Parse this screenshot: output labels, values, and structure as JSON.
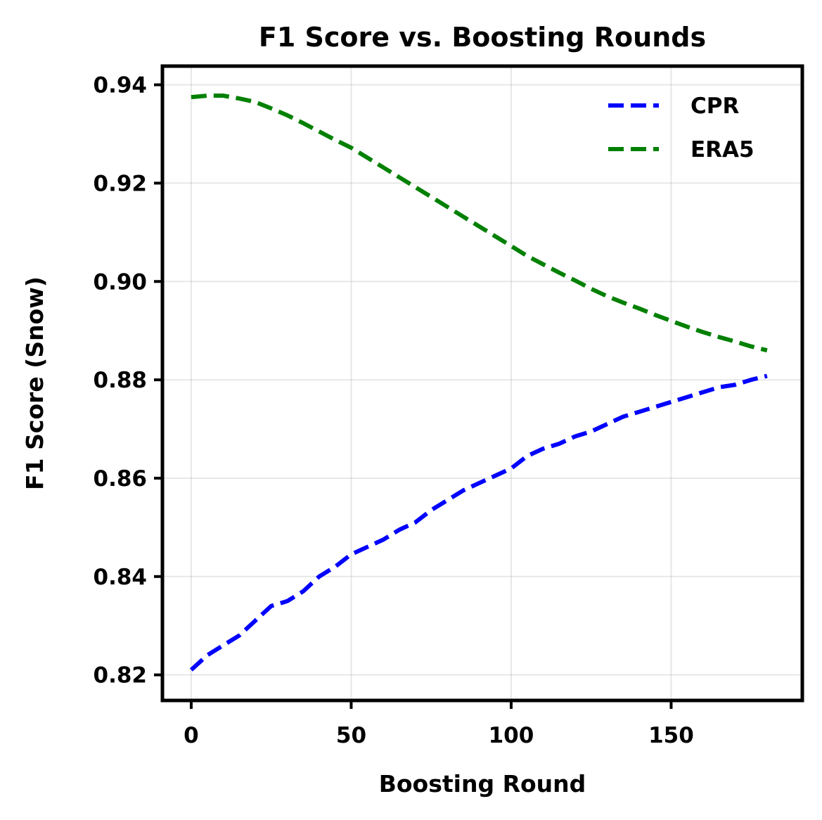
{
  "chart_data": {
    "type": "line",
    "title": "F1 Score vs. Boosting Rounds",
    "xlabel": "Boosting Round",
    "ylabel": "F1 Score (Snow)",
    "xlim": [
      -9,
      191
    ],
    "ylim": [
      0.8148,
      0.9438
    ],
    "xticks": [
      0,
      50,
      100,
      150
    ],
    "xtick_labels": [
      "0",
      "50",
      "100",
      "150"
    ],
    "yticks": [
      0.82,
      0.84,
      0.86,
      0.88,
      0.9,
      0.92,
      0.94
    ],
    "ytick_labels": [
      "0.82",
      "0.84",
      "0.86",
      "0.88",
      "0.90",
      "0.92",
      "0.94"
    ],
    "grid": true,
    "legend_position": "upper-right",
    "x": [
      0,
      5,
      10,
      15,
      20,
      25,
      30,
      35,
      40,
      45,
      50,
      55,
      60,
      65,
      70,
      75,
      80,
      85,
      90,
      95,
      100,
      105,
      110,
      115,
      120,
      125,
      130,
      135,
      140,
      145,
      150,
      155,
      160,
      165,
      170,
      175,
      180
    ],
    "series": [
      {
        "name": "CPR",
        "color": "#0000ff",
        "style": "dashed",
        "values": [
          0.821,
          0.824,
          0.826,
          0.828,
          0.831,
          0.834,
          0.835,
          0.837,
          0.84,
          0.842,
          0.8445,
          0.846,
          0.8475,
          0.8495,
          0.851,
          0.8535,
          0.8555,
          0.8575,
          0.859,
          0.8605,
          0.862,
          0.8645,
          0.866,
          0.867,
          0.8685,
          0.8695,
          0.871,
          0.8725,
          0.8735,
          0.8745,
          0.8755,
          0.8765,
          0.8775,
          0.8785,
          0.879,
          0.88,
          0.8808
        ]
      },
      {
        "name": "ERA5",
        "color": "#008000",
        "style": "dashed",
        "values": [
          0.9375,
          0.9378,
          0.9378,
          0.9372,
          0.9365,
          0.9352,
          0.9338,
          0.9322,
          0.9305,
          0.9288,
          0.9272,
          0.9252,
          0.9232,
          0.9212,
          0.9192,
          0.9172,
          0.9152,
          0.9132,
          0.9112,
          0.9092,
          0.9072,
          0.9052,
          0.9035,
          0.9018,
          0.9002,
          0.8985,
          0.897,
          0.8957,
          0.8945,
          0.8932,
          0.892,
          0.8908,
          0.8897,
          0.8887,
          0.8878,
          0.8868,
          0.886
        ]
      }
    ]
  }
}
